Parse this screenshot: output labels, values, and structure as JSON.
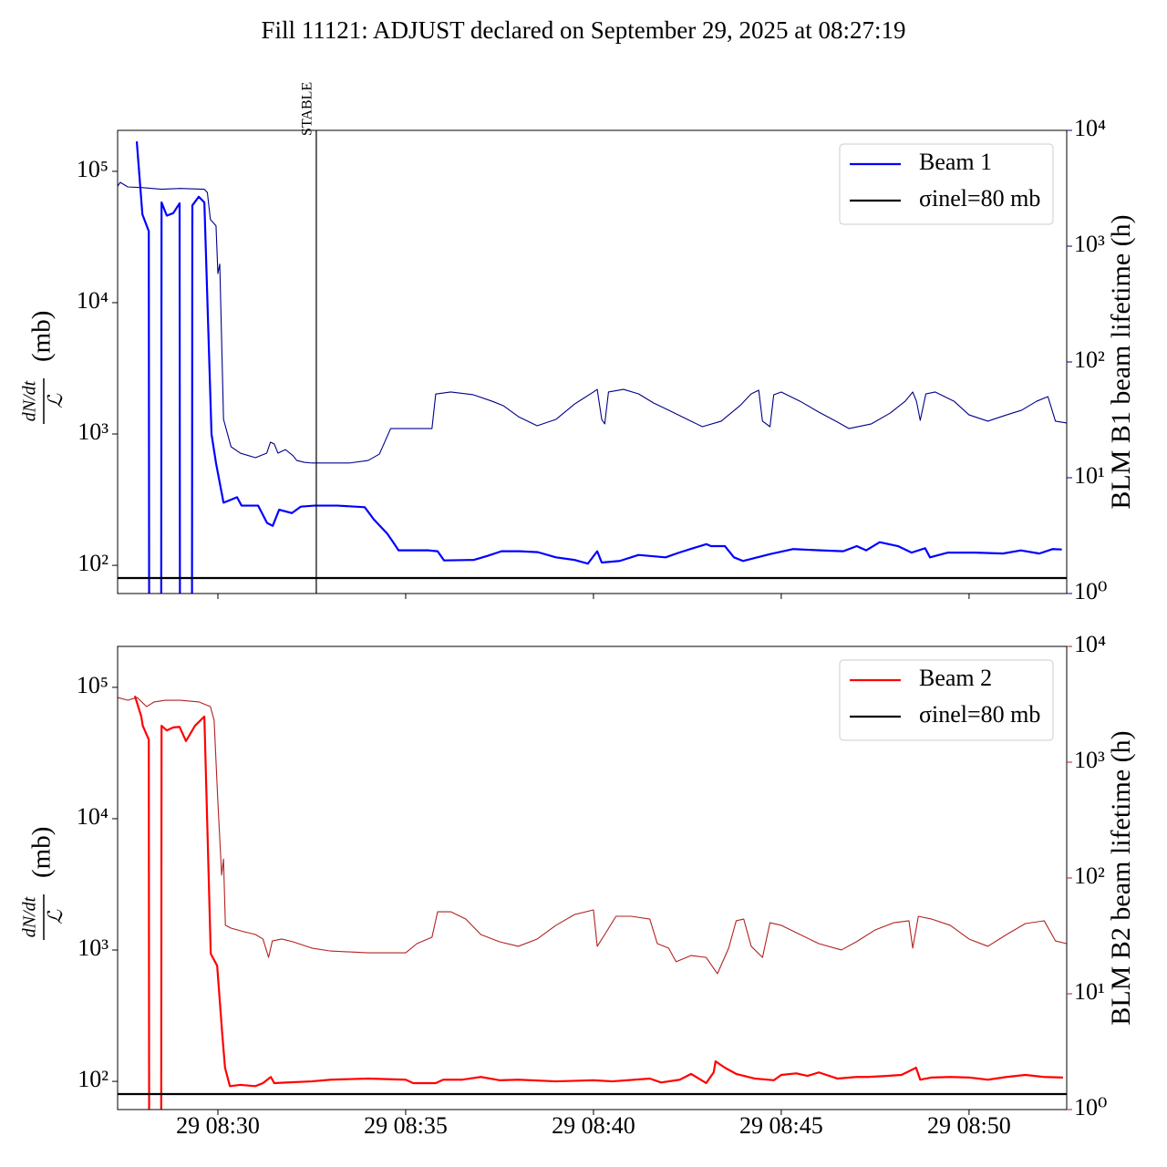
{
  "title": "Fill 11121: ADJUST declared on September 29, 2025 at 08:27:19",
  "chart_data": [
    {
      "type": "line",
      "ylog": true,
      "y2log": true,
      "y2color": "#00008b",
      "ylabel": {
        "numerator": "dN/dt",
        "denominator": "ℒ",
        "unit": "(mb)"
      },
      "y2label": "BLM B1 beam lifetime (h)",
      "xlim": [
        27.33,
        52.6
      ],
      "xticks": [
        30,
        35,
        40,
        45,
        50
      ],
      "ylim": [
        61,
        205000
      ],
      "yticks": [
        {
          "value": 100,
          "label": "10²"
        },
        {
          "value": 1000,
          "label": "10³"
        },
        {
          "value": 10000,
          "label": "10⁴"
        },
        {
          "value": 100000,
          "label": "10⁵"
        }
      ],
      "y2lim": [
        1,
        10000
      ],
      "y2ticks": [
        {
          "value": 1,
          "label": "10⁰"
        },
        {
          "value": 10,
          "label": "10¹"
        },
        {
          "value": 100,
          "label": "10²"
        },
        {
          "value": 1000,
          "label": "10³"
        },
        {
          "value": 10000,
          "label": "10⁴"
        }
      ],
      "vline": {
        "x": 32.62,
        "label": "STABLE"
      },
      "hline": {
        "name": "σinel=80 mb",
        "value": 80,
        "color": "#000000"
      },
      "legend": "upper right",
      "series": [
        {
          "name": "Beam 1",
          "color": "#0000ff",
          "x": [
            27.84,
            27.99,
            28.16,
            28.17,
            28.49,
            28.5,
            28.64,
            28.81,
            28.98,
            28.99,
            29.31,
            29.32,
            29.49,
            29.64,
            29.83,
            29.95,
            30.15,
            30.51,
            30.63,
            31.07,
            31.31,
            31.46,
            31.63,
            31.97,
            32.21,
            32.57,
            33.18,
            33.91,
            34.15,
            34.51,
            34.68,
            34.81,
            35.61,
            35.85,
            36.02,
            36.82,
            37.18,
            37.55,
            38.03,
            38.52,
            39.0,
            39.49,
            39.85,
            40.1,
            40.22,
            40.7,
            41.2,
            41.92,
            42.28,
            42.65,
            43.01,
            43.13,
            43.5,
            43.74,
            43.98,
            44.71,
            45.32,
            46.04,
            46.65,
            47.01,
            47.26,
            47.62,
            48.11,
            48.47,
            48.83,
            48.96,
            49.44,
            50.17,
            50.9,
            51.38,
            51.87,
            52.23,
            52.47
          ],
          "values": [
            169000,
            47000,
            35000,
            30,
            30,
            58000,
            46000,
            48000,
            57000,
            30,
            30,
            55000,
            64000,
            58000,
            1000,
            600,
            300,
            330,
            285,
            285,
            210,
            200,
            265,
            250,
            280,
            285,
            285,
            277,
            224,
            174,
            148,
            130,
            130,
            128,
            109,
            110,
            118,
            128,
            128,
            126,
            115,
            110,
            103,
            128,
            105,
            108,
            120,
            115,
            125,
            135,
            145,
            140,
            140,
            115,
            108,
            122,
            133,
            130,
            128,
            140,
            130,
            150,
            140,
            125,
            135,
            115,
            125,
            125,
            123,
            130,
            123,
            133,
            132
          ]
        },
        {
          "color": "#00008b",
          "axis": "y2",
          "x": [
            27.33,
            27.4,
            27.6,
            28.0,
            28.5,
            29.0,
            29.64,
            29.72,
            29.8,
            29.95,
            30.0,
            30.05,
            30.15,
            30.35,
            30.6,
            31.0,
            31.3,
            31.4,
            31.5,
            31.6,
            31.8,
            32.0,
            32.1,
            32.3,
            32.5,
            33.5,
            34.0,
            34.3,
            34.6,
            35.0,
            35.7,
            35.8,
            36.2,
            36.8,
            37.3,
            37.6,
            38.0,
            38.5,
            39.0,
            39.5,
            40.0,
            40.1,
            40.22,
            40.3,
            40.4,
            40.8,
            41.2,
            41.6,
            42.0,
            42.5,
            42.9,
            43.4,
            43.9,
            44.2,
            44.4,
            44.5,
            44.7,
            44.8,
            45.0,
            45.5,
            46.0,
            46.5,
            46.8,
            47.4,
            47.9,
            48.3,
            48.5,
            48.6,
            48.7,
            48.85,
            49.1,
            49.6,
            50.0,
            50.5,
            51.0,
            51.4,
            51.8,
            52.1,
            52.3,
            52.6
          ],
          "values": [
            3300,
            3560,
            3250,
            3200,
            3100,
            3150,
            3100,
            2900,
            1700,
            1500,
            580,
            700,
            32,
            18.5,
            16.3,
            14.9,
            16.3,
            20.3,
            19.6,
            16.3,
            17.5,
            15.5,
            14.1,
            13.6,
            13.4,
            13.4,
            14.1,
            16.0,
            26.6,
            26.6,
            26.6,
            52.8,
            55,
            52.1,
            45.8,
            41.9,
            33.7,
            28.1,
            31.9,
            43.4,
            55,
            58,
            31.9,
            29.2,
            55,
            58,
            53,
            44.2,
            38.3,
            31.9,
            27.6,
            30.8,
            41.9,
            53,
            57,
            30.8,
            27.6,
            52.1,
            55,
            45.8,
            36.9,
            30.2,
            26.6,
            29.2,
            36.2,
            45.8,
            55,
            45.8,
            31.3,
            53,
            55,
            45.8,
            34.9,
            30.8,
            34.9,
            38.3,
            45.8,
            50.2,
            30.8,
            29.7
          ]
        }
      ]
    },
    {
      "type": "line",
      "ylog": true,
      "y2log": true,
      "y2color": "#b22222",
      "ylabel": {
        "numerator": "dN/dt",
        "denominator": "ℒ",
        "unit": "(mb)"
      },
      "y2label": "BLM B2 beam lifetime (h)",
      "xlim": [
        27.33,
        52.6
      ],
      "xticks": [
        {
          "value": 30,
          "label": "29 08:30"
        },
        {
          "value": 35,
          "label": "29 08:35"
        },
        {
          "value": 40,
          "label": "29 08:40"
        },
        {
          "value": 45,
          "label": "29 08:45"
        },
        {
          "value": 50,
          "label": "29 08:50"
        }
      ],
      "ylim": [
        61,
        205000
      ],
      "yticks": [
        {
          "value": 100,
          "label": "10²"
        },
        {
          "value": 1000,
          "label": "10³"
        },
        {
          "value": 10000,
          "label": "10⁴"
        },
        {
          "value": 100000,
          "label": "10⁵"
        }
      ],
      "y2lim": [
        1,
        10000
      ],
      "y2ticks": [
        {
          "value": 1,
          "label": "10⁰"
        },
        {
          "value": 10,
          "label": "10¹"
        },
        {
          "value": 100,
          "label": "10²"
        },
        {
          "value": 1000,
          "label": "10³"
        },
        {
          "value": 10000,
          "label": "10⁴"
        }
      ],
      "hline": {
        "name": "σinel=80 mb",
        "value": 80,
        "color": "#000000"
      },
      "legend": "upper right",
      "series": [
        {
          "name": "Beam 2",
          "color": "#ff0000",
          "x": [
            27.79,
            27.96,
            28.0,
            28.16,
            28.17,
            28.49,
            28.5,
            28.64,
            28.81,
            28.98,
            29.15,
            29.39,
            29.64,
            29.81,
            29.98,
            30.12,
            30.19,
            30.32,
            30.6,
            31.0,
            31.2,
            31.41,
            31.5,
            31.8,
            32.5,
            33.0,
            34.0,
            35.0,
            35.2,
            35.8,
            36.0,
            36.5,
            37.0,
            37.5,
            38.0,
            39.0,
            40.0,
            40.5,
            41.5,
            41.8,
            42.3,
            42.6,
            43.0,
            43.2,
            43.25,
            43.5,
            43.8,
            44.3,
            44.8,
            45.0,
            45.4,
            45.7,
            46.0,
            46.5,
            47.0,
            47.3,
            47.8,
            48.2,
            48.59,
            48.7,
            49.0,
            49.5,
            50.0,
            50.5,
            51.0,
            51.5,
            52.0,
            52.5
          ],
          "values": [
            86000,
            60000,
            51000,
            40000,
            30,
            30,
            51000,
            47000,
            49500,
            50000,
            39000,
            51000,
            60000,
            937,
            760,
            222,
            127,
            92,
            94,
            92,
            97,
            108,
            97,
            98,
            100,
            103,
            105,
            103,
            97,
            97,
            103,
            103,
            108,
            102,
            103,
            100,
            102,
            100,
            105,
            98,
            103,
            114,
            97,
            117,
            142,
            127,
            114,
            105,
            102,
            112,
            115,
            110,
            117,
            105,
            108,
            108,
            110,
            112,
            127,
            103,
            107,
            108,
            107,
            103,
            108,
            112,
            108,
            107
          ]
        },
        {
          "color": "#b22222",
          "axis": "y2",
          "x": [
            27.33,
            27.6,
            27.85,
            28.1,
            28.3,
            28.6,
            29.0,
            29.5,
            29.8,
            29.9,
            30.0,
            30.1,
            30.15,
            30.2,
            30.35,
            30.7,
            31.0,
            31.2,
            31.35,
            31.45,
            31.7,
            32.0,
            32.5,
            33.0,
            34.0,
            35.0,
            35.3,
            35.7,
            35.85,
            36.2,
            36.6,
            37.0,
            37.5,
            38.0,
            38.5,
            39.0,
            39.5,
            40.0,
            40.1,
            40.3,
            40.6,
            41.0,
            41.5,
            41.7,
            42.0,
            42.2,
            42.6,
            43.0,
            43.3,
            43.6,
            43.8,
            44.0,
            44.2,
            44.5,
            44.7,
            45.0,
            45.5,
            46.0,
            46.6,
            47.0,
            47.5,
            48.0,
            48.4,
            48.5,
            48.65,
            49.0,
            49.5,
            50.0,
            50.5,
            51.0,
            51.5,
            52.0,
            52.3,
            52.6
          ],
          "values": [
            3620,
            3430,
            3620,
            3020,
            3310,
            3430,
            3430,
            3310,
            3020,
            2300,
            451,
            106,
            146,
            39,
            36.9,
            34.3,
            32.5,
            29.7,
            20.6,
            28.6,
            29.7,
            28.1,
            24.8,
            23.4,
            22.6,
            22.6,
            27.1,
            30.8,
            51.1,
            51.1,
            44.2,
            32.5,
            28.1,
            25.7,
            29.7,
            39,
            48.4,
            53.0,
            25.7,
            32.5,
            46.7,
            46.7,
            44.2,
            27.1,
            24.8,
            18.9,
            21.4,
            20.6,
            14.9,
            24.8,
            42.7,
            44.2,
            25.7,
            20.6,
            41.1,
            39,
            32.5,
            27.1,
            23.9,
            28.1,
            35.6,
            41.1,
            42.7,
            24.8,
            46.7,
            44.2,
            39,
            29.7,
            25.7,
            32.5,
            40.4,
            42.7,
            28.6,
            27.1
          ]
        }
      ]
    }
  ]
}
